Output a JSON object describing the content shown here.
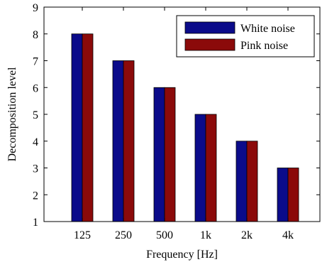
{
  "chart_data": {
    "type": "bar",
    "categories": [
      "125",
      "250",
      "500",
      "1k",
      "2k",
      "4k"
    ],
    "series": [
      {
        "name": "White noise",
        "values": [
          8,
          7,
          6,
          5,
          4,
          3
        ],
        "color": "#0b0b8a"
      },
      {
        "name": "Pink noise",
        "values": [
          8,
          7,
          6,
          5,
          4,
          3
        ],
        "color": "#8b0a0a"
      }
    ],
    "xlabel": "Frequency [Hz]",
    "ylabel": "Decomposition level",
    "ylim": [
      1,
      9
    ],
    "yticks": [
      1,
      2,
      3,
      4,
      5,
      6,
      7,
      8,
      9
    ],
    "grid": false,
    "legend_position": "top-right"
  }
}
